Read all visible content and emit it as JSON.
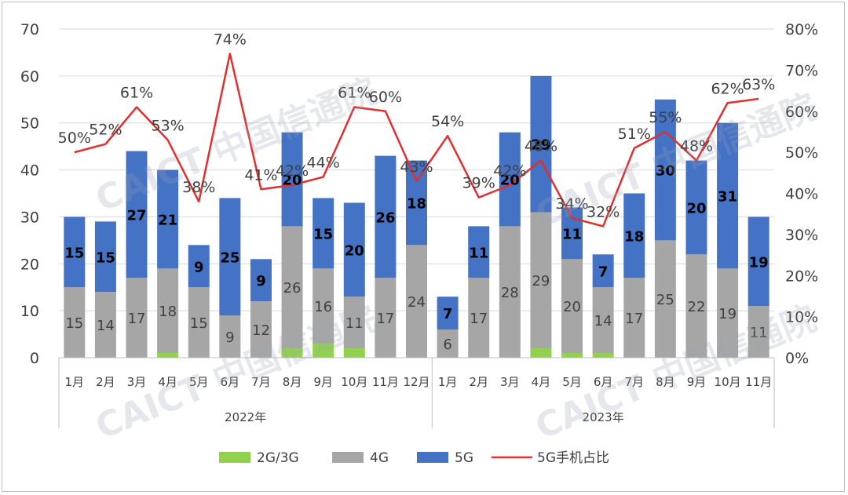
{
  "colors": {
    "g23": "#92d050",
    "g4": "#a6a6a6",
    "g5": "#4472c4",
    "share": "#e03030"
  },
  "watermark": "CAICT 中国信通院",
  "legend": [
    "2G/3G",
    "4G",
    "5G",
    "5G手机占比"
  ],
  "chart_data": {
    "type": "bar",
    "stacked": true,
    "groups": [
      {
        "label": "2022年",
        "start": 0,
        "end": 11
      },
      {
        "label": "2023年",
        "start": 12,
        "end": 22
      }
    ],
    "categories": [
      "1月",
      "2月",
      "3月",
      "4月",
      "5月",
      "6月",
      "7月",
      "8月",
      "9月",
      "10月",
      "11月",
      "12月",
      "1月",
      "2月",
      "3月",
      "4月",
      "5月",
      "6月",
      "7月",
      "8月",
      "9月",
      "10月",
      "11月"
    ],
    "series": [
      {
        "name": "2G/3G",
        "values": [
          0,
          0,
          0,
          1,
          0,
          0,
          0,
          2,
          3,
          2,
          0,
          0,
          0,
          0,
          0,
          2,
          1,
          1,
          0,
          0,
          0,
          0,
          0
        ]
      },
      {
        "name": "4G",
        "values": [
          15,
          14,
          17,
          18,
          15,
          9,
          12,
          26,
          16,
          11,
          17,
          24,
          6,
          17,
          28,
          29,
          20,
          14,
          17,
          25,
          22,
          19,
          11
        ]
      },
      {
        "name": "5G",
        "values": [
          15,
          15,
          27,
          21,
          9,
          25,
          9,
          20,
          15,
          20,
          26,
          18,
          7,
          11,
          20,
          29,
          11,
          7,
          18,
          30,
          20,
          31,
          19
        ]
      }
    ],
    "line": {
      "name": "5G手机占比",
      "values": [
        50,
        52,
        61,
        53,
        38,
        74,
        41,
        42,
        44,
        61,
        60,
        43,
        54,
        39,
        42,
        48,
        34,
        32,
        51,
        55,
        48,
        62,
        63
      ]
    },
    "yticks": [
      "0",
      "10",
      "20",
      "30",
      "40",
      "50",
      "60",
      "70"
    ],
    "y2ticks": [
      "0%",
      "10%",
      "20%",
      "30%",
      "40%",
      "50%",
      "60%",
      "70%",
      "80%"
    ],
    "ylim": [
      0,
      70
    ],
    "y2lim": [
      0,
      80
    ],
    "legend_position": "bottom",
    "grid": true
  }
}
